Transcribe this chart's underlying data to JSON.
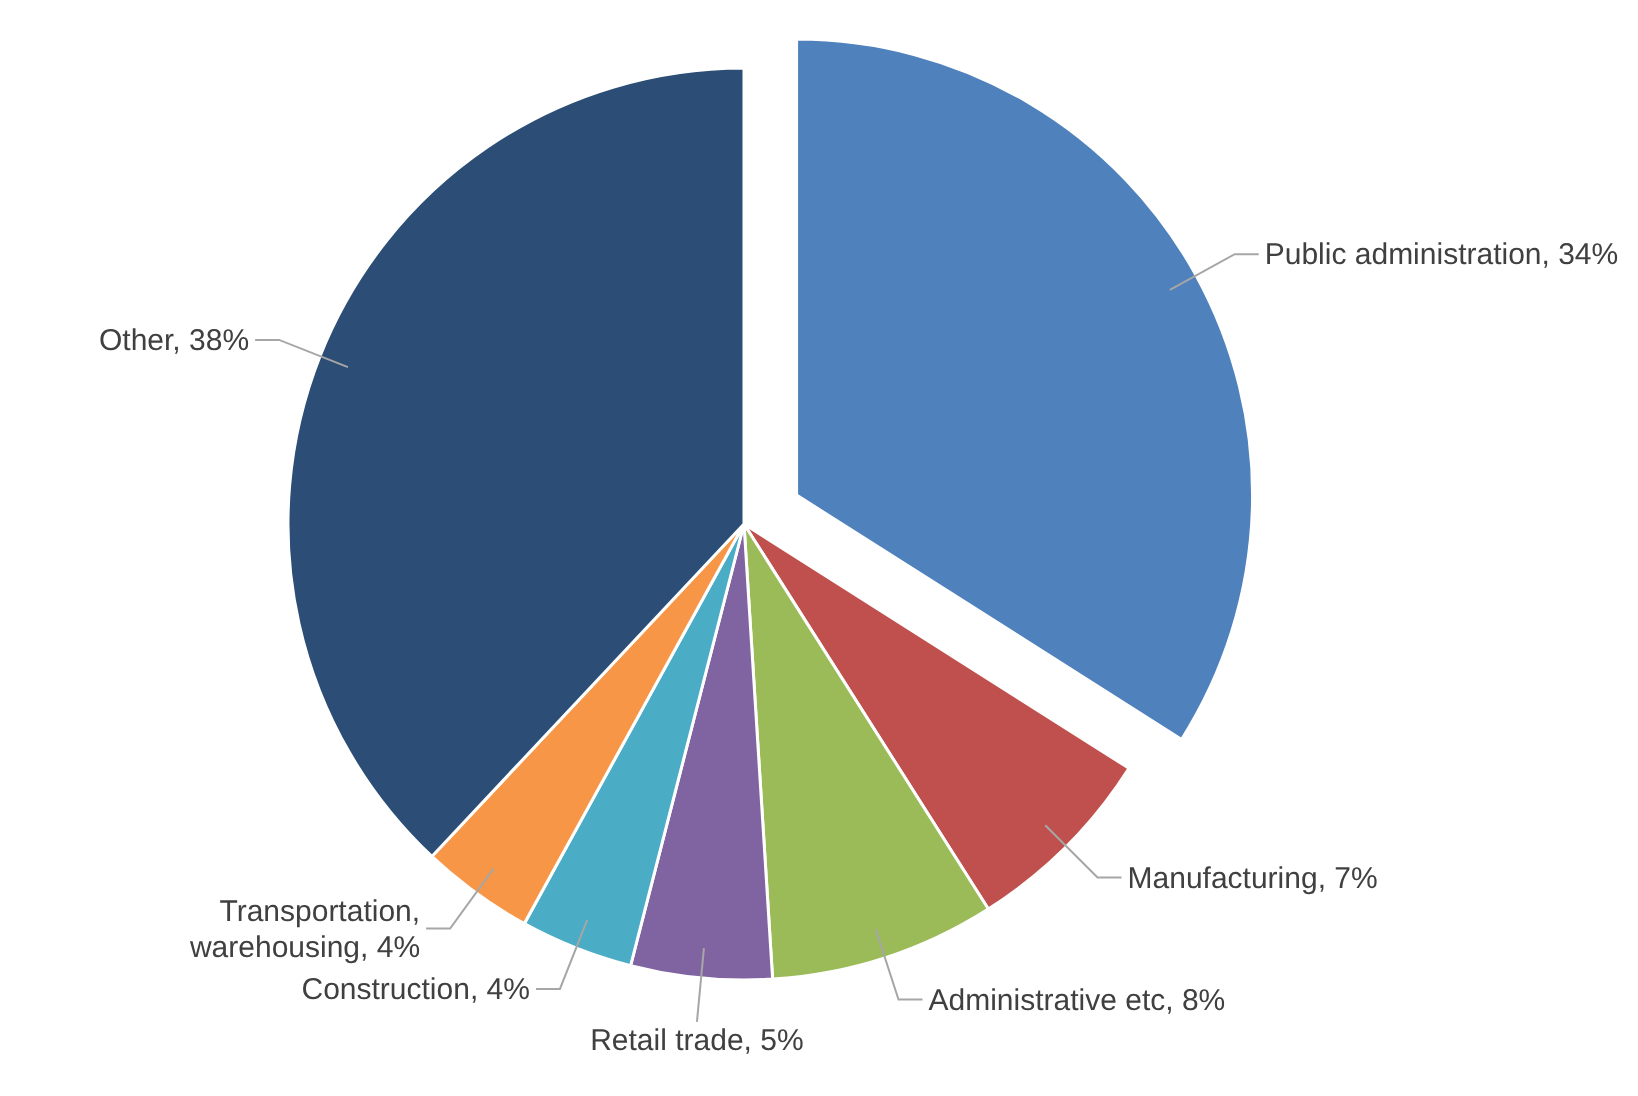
{
  "chart_data": {
    "type": "pie",
    "categories": [
      "Public administration",
      "Manufacturing",
      "Administrative etc",
      "Retail trade",
      "Construction",
      "Transportation, warehousing",
      "Other"
    ],
    "values": [
      34,
      7,
      8,
      5,
      4,
      4,
      38
    ],
    "value_labels": [
      "34%",
      "7%",
      "8%",
      "5%",
      "4%",
      "4%",
      "38%"
    ],
    "colors": [
      "#4f81bd",
      "#c0504d",
      "#9bbb59",
      "#8064a2",
      "#4bacc6",
      "#f79646",
      "#2c4d75"
    ]
  }
}
